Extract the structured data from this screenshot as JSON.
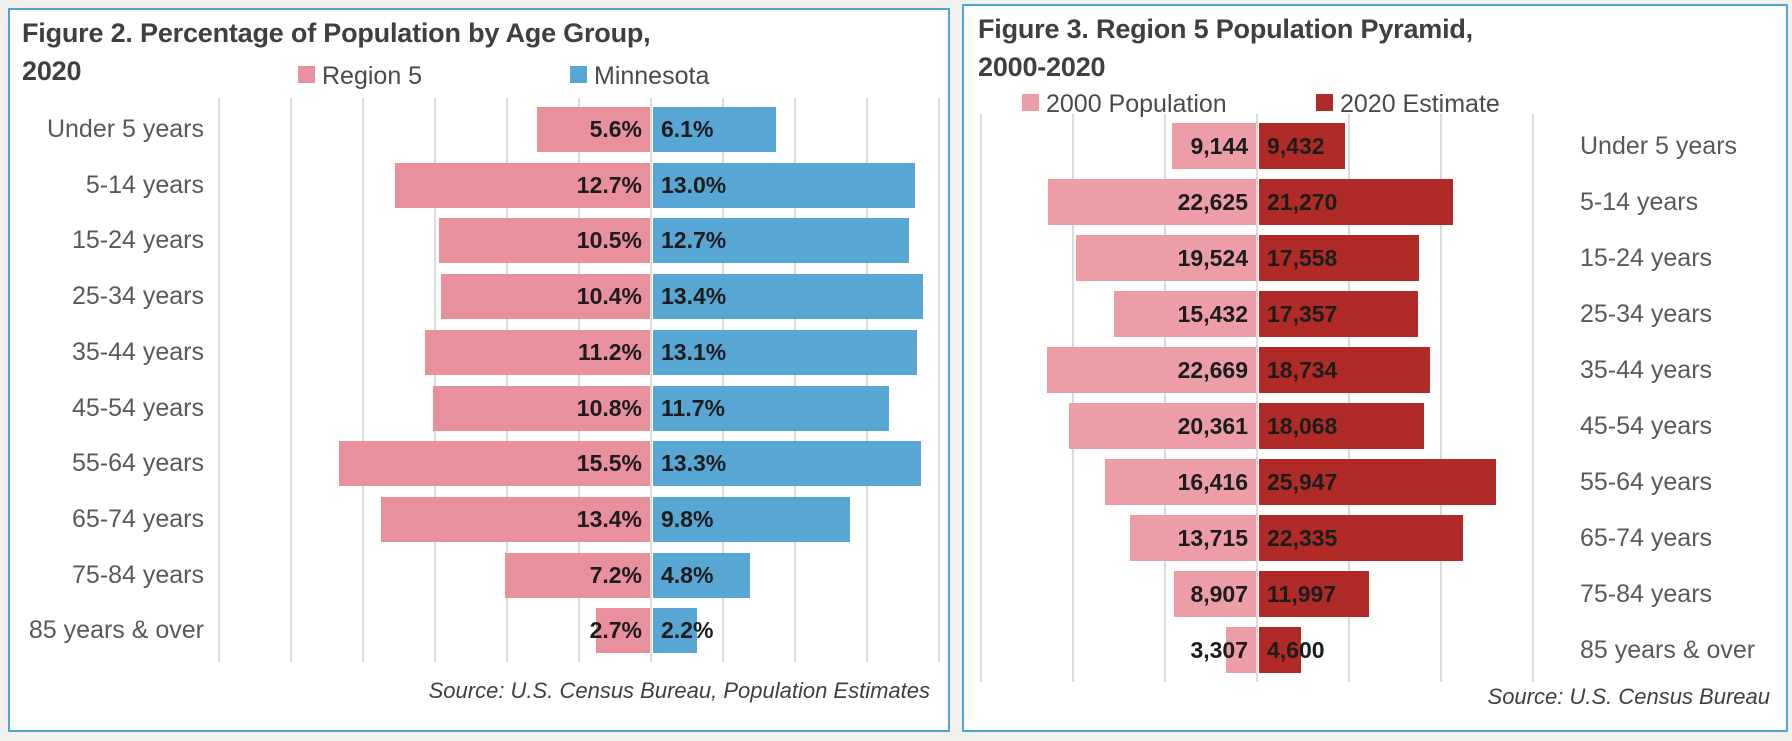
{
  "figure2": {
    "title_line1": "Figure 2. Percentage of Population by Age Group,",
    "title_line2": "2020"
  },
  "figure3": {
    "title_line1": "Figure 3. Region 5 Population Pyramid,",
    "title_line2": "2000-2020"
  },
  "chart_data": [
    {
      "type": "bar",
      "subtype": "butterfly-pyramid",
      "title": "Figure 2. Percentage of Population by Age Group, 2020",
      "categories": [
        "Under 5 years",
        "5-14 years",
        "15-24 years",
        "25-34 years",
        "35-44 years",
        "45-54 years",
        "55-64 years",
        "65-74 years",
        "75-84 years",
        "85 years & over"
      ],
      "series": [
        {
          "name": "Region 5",
          "color": "#E8909B",
          "side": "left",
          "values": [
            5.6,
            12.7,
            10.5,
            10.4,
            11.2,
            10.8,
            15.5,
            13.4,
            7.2,
            2.7
          ]
        },
        {
          "name": "Minnesota",
          "color": "#58A6D4",
          "side": "right",
          "values": [
            6.1,
            13.0,
            12.7,
            13.4,
            13.1,
            11.7,
            13.3,
            9.8,
            4.8,
            2.2
          ]
        }
      ],
      "value_format": "percent_1dp",
      "value_labels": "inside-end-near-center",
      "categories_side": "left",
      "left_axis_max": 21.5,
      "right_axis_max": 14.3,
      "grid": true,
      "legend_position": "top",
      "source": "Source: U.S. Census Bureau, Population Estimates"
    },
    {
      "type": "bar",
      "subtype": "butterfly-pyramid",
      "title": "Figure 3. Region 5 Population Pyramid, 2000-2020",
      "categories": [
        "Under 5 years",
        "5-14 years",
        "15-24 years",
        "25-34 years",
        "35-44 years",
        "45-54 years",
        "55-64 years",
        "65-74 years",
        "75-84 years",
        "85 years & over"
      ],
      "series": [
        {
          "name": "2000 Population",
          "color": "#EC9DA6",
          "side": "left",
          "values": [
            9144,
            22625,
            19524,
            15432,
            22669,
            20361,
            16416,
            13715,
            8907,
            3307
          ]
        },
        {
          "name": "2020 Estimate",
          "color": "#B02B27",
          "side": "right",
          "values": [
            9432,
            21270,
            17558,
            17357,
            18734,
            18068,
            25947,
            22335,
            11997,
            4600
          ]
        }
      ],
      "value_format": "thousands_comma",
      "value_labels": "inside-end-near-center",
      "categories_side": "right",
      "left_axis_max": 30000,
      "right_axis_max": 30000,
      "grid": true,
      "legend_position": "top",
      "source": "Source: U.S. Census Bureau"
    }
  ],
  "colors": {
    "chart_border": "#4DA7D6",
    "gridline": "#DBDBDB",
    "title_text": "#3F3F3F",
    "category_text": "#595959",
    "value_text": "#1C1C1C",
    "page_background": "#F2F1EE"
  }
}
